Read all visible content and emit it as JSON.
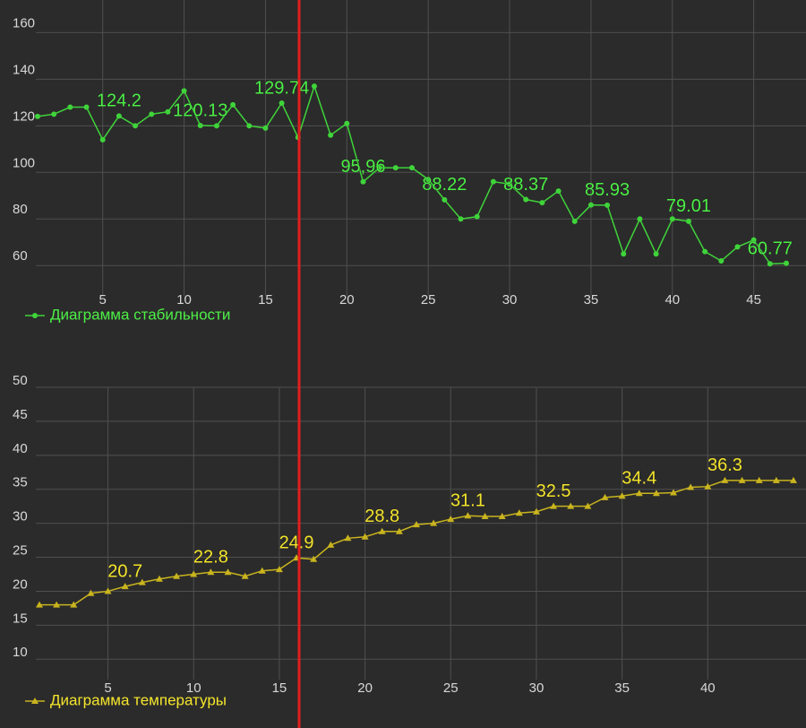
{
  "chart_data": [
    {
      "type": "line",
      "x": [
        1,
        2,
        3,
        4,
        5,
        6,
        7,
        8,
        9,
        10,
        11,
        12,
        13,
        14,
        15,
        16,
        17,
        18,
        19,
        20,
        21,
        22,
        23,
        24,
        25,
        26,
        27,
        28,
        29,
        30,
        31,
        32,
        33,
        34,
        35,
        36,
        37,
        38,
        39,
        40,
        41,
        42,
        43,
        44,
        45,
        46,
        47
      ],
      "series": [
        {
          "name": "Диаграмма стабильности",
          "color": "#3fd43a",
          "label_color": "#4cf046",
          "marker": "circle",
          "values": [
            124,
            125,
            128,
            128,
            114,
            124.2,
            120,
            125,
            126,
            135,
            120.13,
            120,
            129,
            120,
            119,
            129.74,
            115,
            137,
            116,
            121,
            95.96,
            102,
            102,
            102,
            97,
            88.22,
            80,
            81,
            96,
            95,
            88.37,
            87,
            92,
            79,
            86,
            85.93,
            65,
            80,
            65,
            80,
            79.01,
            66,
            62,
            68,
            71,
            60.77,
            61
          ],
          "value_labels": [
            null,
            null,
            null,
            null,
            null,
            "124.2",
            null,
            null,
            null,
            null,
            "120.13",
            null,
            null,
            null,
            null,
            "129.74",
            null,
            null,
            null,
            null,
            "95,96",
            null,
            null,
            null,
            null,
            "88.22",
            null,
            null,
            null,
            null,
            "88.37",
            null,
            null,
            null,
            null,
            "85.93",
            null,
            null,
            null,
            null,
            "79.01",
            null,
            null,
            null,
            null,
            "60.77",
            null
          ]
        }
      ],
      "xlim": [
        1,
        47
      ],
      "xticks": [
        5,
        10,
        15,
        20,
        25,
        30,
        35,
        40,
        45
      ],
      "ylim": [
        47,
        174
      ],
      "yticks": [
        60,
        80,
        100,
        120,
        140,
        160
      ],
      "grid": true,
      "legend": "bottom-left"
    },
    {
      "type": "line",
      "x": [
        1,
        2,
        3,
        4,
        5,
        6,
        7,
        8,
        9,
        10,
        11,
        12,
        13,
        14,
        15,
        16,
        17,
        18,
        19,
        20,
        21,
        22,
        23,
        24,
        25,
        26,
        27,
        28,
        29,
        30,
        31,
        32,
        33,
        34,
        35,
        36,
        37,
        38,
        39,
        40,
        41,
        42,
        43,
        44,
        45
      ],
      "series": [
        {
          "name": "Диаграмма температуры",
          "color": "#c9b41e",
          "label_color": "#f5e52c",
          "marker": "triangle",
          "values": [
            18,
            18,
            18,
            19.7,
            20,
            20.7,
            21.3,
            21.8,
            22.2,
            22.5,
            22.8,
            22.8,
            22.2,
            23,
            23.2,
            24.9,
            24.7,
            26.8,
            27.8,
            28,
            28.8,
            28.8,
            29.8,
            30,
            30.6,
            31.1,
            31,
            31,
            31.5,
            31.7,
            32.5,
            32.5,
            32.5,
            33.8,
            34,
            34.4,
            34.4,
            34.5,
            35.3,
            35.4,
            36.3,
            36.3,
            36.3,
            36.3,
            36.3
          ],
          "value_labels": [
            null,
            null,
            null,
            null,
            null,
            "20.7",
            null,
            null,
            null,
            null,
            "22.8",
            null,
            null,
            null,
            null,
            "24.9",
            null,
            null,
            null,
            null,
            "28.8",
            null,
            null,
            null,
            null,
            "31.1",
            null,
            null,
            null,
            null,
            "32.5",
            null,
            null,
            null,
            null,
            "34.4",
            null,
            null,
            null,
            null,
            "36.3",
            null,
            null,
            null,
            null
          ]
        }
      ],
      "xlim": [
        1,
        45
      ],
      "xticks": [
        5,
        10,
        15,
        20,
        25,
        30,
        35,
        40
      ],
      "ylim": [
        7,
        50
      ],
      "yticks": [
        10,
        15,
        20,
        25,
        30,
        35,
        40,
        45,
        50
      ],
      "grid": true,
      "legend": "bottom-left"
    }
  ]
}
